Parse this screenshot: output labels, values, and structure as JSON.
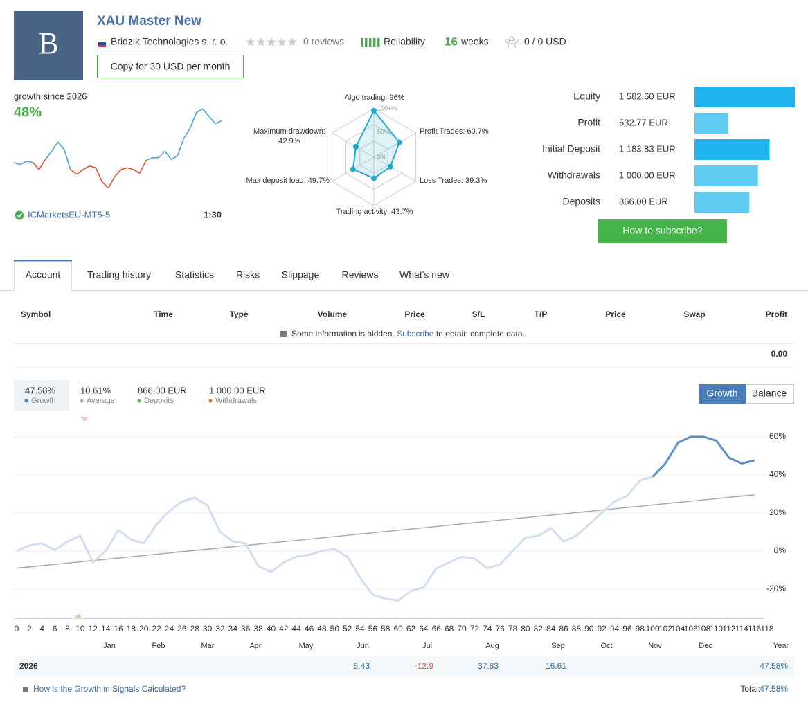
{
  "header": {
    "logo_letter": "B",
    "title": "XAU Master New",
    "company": "Bridzik Technologies s. r. o.",
    "reviews": "0 reviews",
    "reliability": "Reliability",
    "weeks_value": "16",
    "weeks_label": "weeks",
    "subscribers": "0 / 0 USD",
    "copy_button": "Copy for 30 USD per month"
  },
  "mini": {
    "growth_label": "growth since 2026",
    "growth_value": "48%",
    "broker": "ICMarketsEU-MT5-5",
    "leverage": "1:30",
    "values": [
      1.5,
      -0.5,
      3,
      2,
      -6,
      5,
      14,
      24,
      16,
      -6,
      -11,
      -6,
      -2,
      -4,
      -19,
      -26,
      -14,
      -6,
      -4,
      -6,
      -10,
      4,
      7,
      7,
      14,
      5,
      9,
      28,
      39,
      56,
      60,
      52,
      44,
      47
    ]
  },
  "radar": {
    "ring_labels": [
      "100+%",
      "50%",
      "0%"
    ],
    "axes": [
      {
        "name": "Algo trading:",
        "value_label": "96%",
        "value": 96
      },
      {
        "name": "Profit Trades:",
        "value_label": "60.7%",
        "value": 60.7
      },
      {
        "name": "Loss Trades:",
        "value_label": "39.3%",
        "value": 39.3
      },
      {
        "name": "Trading activity:",
        "value_label": "43.7%",
        "value": 43.7
      },
      {
        "name": "Max deposit load:",
        "value_label": "49.7%",
        "value": 49.7
      },
      {
        "name": "Maximum drawdown:",
        "value_label": "42.9%",
        "value": 42.9
      }
    ]
  },
  "account_bars": [
    {
      "label": "Equity",
      "value_label": "1 582.60 EUR",
      "value": 1582.6,
      "color": "#1fb4ef"
    },
    {
      "label": "Profit",
      "value_label": "532.77 EUR",
      "value": 532.77,
      "color": "#5fcbf3"
    },
    {
      "label": "Initial Deposit",
      "value_label": "1 183.83 EUR",
      "value": 1183.83,
      "color": "#1fb4ef"
    },
    {
      "label": "Withdrawals",
      "value_label": "1 000.00 EUR",
      "value": 1000.0,
      "color": "#5fcbf3"
    },
    {
      "label": "Deposits",
      "value_label": "866.00 EUR",
      "value": 866.0,
      "color": "#5fcbf3"
    }
  ],
  "subscribe_button": "How to subscribe?",
  "tabs": [
    "Account",
    "Trading history",
    "Statistics",
    "Risks",
    "Slippage",
    "Reviews",
    "What's new"
  ],
  "table": {
    "headers": [
      "Symbol",
      "Time",
      "Type",
      "Volume",
      "Price",
      "S/L",
      "T/P",
      "Price",
      "Swap",
      "Profit"
    ],
    "note": "Some information is hidden.",
    "note_link": "Subscribe",
    "note_end": "to obtain complete data.",
    "total": "0.00"
  },
  "stats": [
    {
      "value": "47.58%",
      "label": "Growth",
      "color": "#4a7ebb"
    },
    {
      "value": "10.61%",
      "label": "Average",
      "color": "#aaaaaa"
    },
    {
      "value": "866.00 EUR",
      "label": "Deposits",
      "color": "#6ab04c"
    },
    {
      "value": "1 000.00 EUR",
      "label": "Withdrawals",
      "color": "#e2703a"
    }
  ],
  "buttons": [
    "Growth",
    "Balance"
  ],
  "chart_data": {
    "type": "line",
    "x": [
      0,
      2,
      4,
      6,
      8,
      10,
      12,
      14,
      16,
      18,
      20,
      22,
      24,
      26,
      28,
      30,
      32,
      34,
      36,
      38,
      40,
      42,
      44,
      46,
      48,
      50,
      52,
      54,
      56,
      58,
      60,
      62,
      64,
      66,
      68,
      70,
      72,
      74,
      76,
      78,
      80,
      82,
      84,
      86,
      88,
      90,
      92,
      94,
      96,
      98,
      100,
      102,
      104,
      106,
      108,
      110,
      112,
      114,
      116
    ],
    "series": [
      {
        "color": "#d3ddf0",
        "values": [
          0,
          3,
          4,
          0.5,
          5,
          8,
          -6,
          0,
          11,
          6,
          4,
          14,
          21,
          26,
          28,
          24,
          10,
          5,
          4,
          -8,
          -11,
          -6,
          -3,
          -2,
          0,
          1,
          -3,
          -14,
          -23,
          -25,
          -26,
          -21,
          -19,
          -9,
          -6,
          -3,
          -4,
          -9,
          -7,
          0,
          7,
          8,
          12,
          5,
          8,
          14,
          20,
          26,
          29,
          37,
          39,
          null,
          null,
          null,
          null,
          null,
          null,
          null,
          null
        ]
      },
      {
        "color": "#5b8fc7",
        "values": [
          null,
          null,
          null,
          null,
          null,
          null,
          null,
          null,
          null,
          null,
          null,
          null,
          null,
          null,
          null,
          null,
          null,
          null,
          null,
          null,
          null,
          null,
          null,
          null,
          null,
          null,
          null,
          null,
          null,
          null,
          null,
          null,
          null,
          null,
          null,
          null,
          null,
          null,
          null,
          null,
          null,
          null,
          null,
          null,
          null,
          null,
          null,
          null,
          null,
          null,
          39,
          46,
          57,
          60,
          60,
          58,
          49,
          46,
          47.6
        ]
      }
    ],
    "trend": {
      "x": [
        0,
        116
      ],
      "values": [
        -9,
        29.5
      ],
      "color": "#aaaaaa"
    },
    "xlim": [
      0,
      118
    ],
    "xticks": [
      0,
      2,
      4,
      6,
      8,
      10,
      12,
      14,
      16,
      18,
      20,
      22,
      24,
      26,
      28,
      30,
      32,
      34,
      36,
      38,
      40,
      42,
      44,
      46,
      48,
      50,
      52,
      54,
      56,
      58,
      60,
      62,
      64,
      66,
      68,
      70,
      72,
      74,
      76,
      78,
      80,
      82,
      84,
      86,
      88,
      90,
      92,
      94,
      96,
      98,
      100,
      102,
      104,
      106,
      108,
      110,
      112,
      114,
      116,
      118
    ],
    "ylim": [
      -35.3,
      67.6
    ],
    "yticks": [
      {
        "value": -20,
        "label": "-20%"
      },
      {
        "value": 0,
        "label": "0%"
      },
      {
        "value": 20,
        "label": "20%"
      },
      {
        "value": 40,
        "label": "40%"
      },
      {
        "value": 60,
        "label": "60%"
      }
    ],
    "grid": true,
    "months": [
      "Jan",
      "Feb",
      "Mar",
      "Apr",
      "May",
      "Jun",
      "Jul",
      "Aug",
      "Sep",
      "Oct",
      "Nov",
      "Dec",
      "Year"
    ]
  },
  "year_row": {
    "label": "2026",
    "months": [
      null,
      null,
      null,
      null,
      null,
      5.43,
      -12.9,
      37.83,
      16.61,
      null,
      null,
      null
    ],
    "year": "47.58%"
  },
  "footer": {
    "link": "How is the Growth in Signals Calculated?",
    "total_label": "Total:",
    "total_value": "47.58%"
  }
}
